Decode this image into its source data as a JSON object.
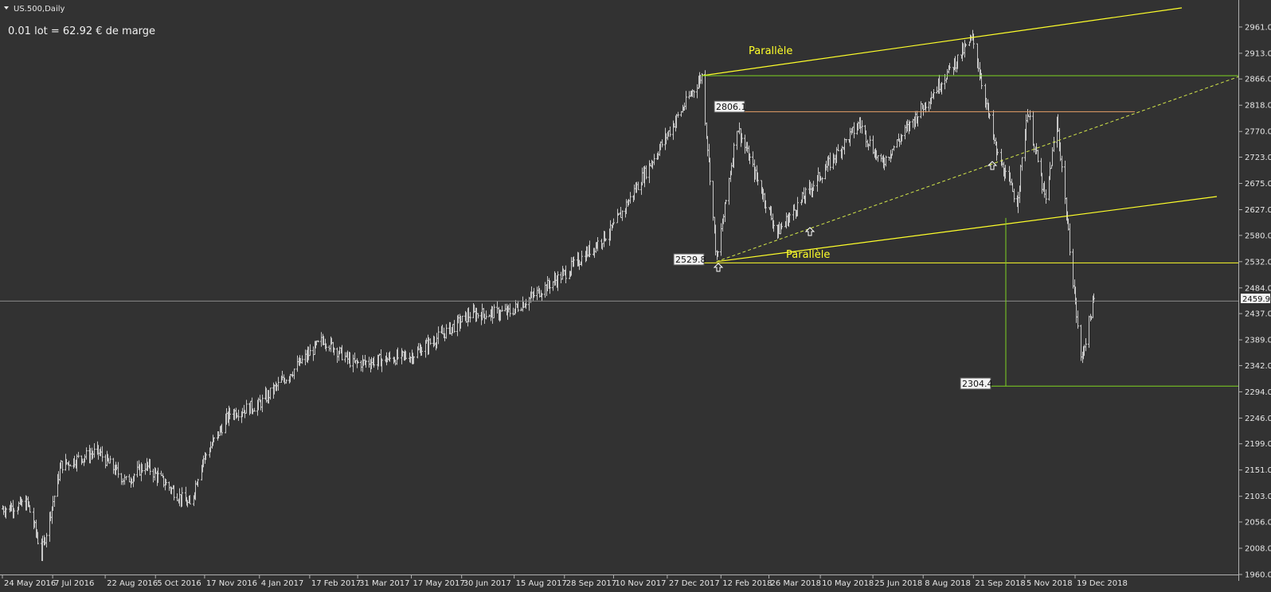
{
  "header": {
    "symbol": "US.500,Daily",
    "margin_note": "0.01 lot = 62.92 € de marge"
  },
  "colors": {
    "background": "#323232",
    "bars": "#c8c8c8",
    "axis_text": "#e6e6e6",
    "channel": "#ffff2a",
    "level_green": "#7ed321",
    "level_orange": "#e8a06a",
    "current_line": "#8a8a8a"
  },
  "chart_data": {
    "type": "ohlc",
    "symbol": "US.500",
    "timeframe": "Daily",
    "x_ticks": [
      "24 May 2016",
      "7 Jul 2016",
      "22 Aug 2016",
      "5 Oct 2016",
      "17 Nov 2016",
      "4 Jan 2017",
      "17 Feb 2017",
      "31 Mar 2017",
      "17 May 2017",
      "30 Jun 2017",
      "15 Aug 2017",
      "28 Sep 2017",
      "10 Nov 2017",
      "27 Dec 2017",
      "12 Feb 2018",
      "26 Mar 2018",
      "10 May 2018",
      "25 Jun 2018",
      "8 Aug 2018",
      "21 Sep 2018",
      "5 Nov 2018",
      "19 Dec 2018"
    ],
    "y_ticks": [
      "2961.0",
      "2913.0",
      "2866.0",
      "2818.0",
      "2770.0",
      "2723.0",
      "2675.0",
      "2627.0",
      "2580.0",
      "2532.0",
      "2484.0",
      "2437.0",
      "2389.0",
      "2342.0",
      "2294.0",
      "2246.0",
      "2199.0",
      "2151.0",
      "2103.0",
      "2056.0",
      "2008.0",
      "1960.0"
    ],
    "ylim": [
      1960,
      2990
    ],
    "price_path": [
      {
        "date": "24 May 2016",
        "close": 2080
      },
      {
        "date": "15 Jun 2016",
        "close": 2090
      },
      {
        "date": "27 Jun 2016",
        "close": 2000
      },
      {
        "date": "14 Jul 2016",
        "close": 2160
      },
      {
        "date": "15 Aug 2016",
        "close": 2185
      },
      {
        "date": "9 Sep 2016",
        "close": 2130
      },
      {
        "date": "26 Sep 2016",
        "close": 2160
      },
      {
        "date": "4 Nov 2016",
        "close": 2085
      },
      {
        "date": "14 Nov 2016",
        "close": 2165
      },
      {
        "date": "9 Dec 2016",
        "close": 2255
      },
      {
        "date": "3 Jan 2017",
        "close": 2270
      },
      {
        "date": "1 Mar 2017",
        "close": 2390
      },
      {
        "date": "27 Mar 2017",
        "close": 2345
      },
      {
        "date": "17 May 2017",
        "close": 2360
      },
      {
        "date": "7 Jul 2017",
        "close": 2435
      },
      {
        "date": "11 Aug 2017",
        "close": 2440
      },
      {
        "date": "28 Sep 2017",
        "close": 2510
      },
      {
        "date": "8 Nov 2017",
        "close": 2590
      },
      {
        "date": "26 Jan 2018",
        "close": 2872
      },
      {
        "date": "8 Feb 2018",
        "close": 2533
      },
      {
        "date": "26 Feb 2018",
        "close": 2780
      },
      {
        "date": "2 Apr 2018",
        "close": 2585
      },
      {
        "date": "13 Jun 2018",
        "close": 2785
      },
      {
        "date": "2 Jul 2018",
        "close": 2710
      },
      {
        "date": "20 Sep 2018",
        "close": 2940
      },
      {
        "date": "11 Oct 2018",
        "close": 2730
      },
      {
        "date": "29 Oct 2018",
        "close": 2640
      },
      {
        "date": "7 Nov 2018",
        "close": 2810
      },
      {
        "date": "23 Nov 2018",
        "close": 2640
      },
      {
        "date": "3 Dec 2018",
        "close": 2790
      },
      {
        "date": "24 Dec 2018",
        "close": 2351
      },
      {
        "date": "4 Jan 2019",
        "close": 2460
      }
    ],
    "current_price": "2459.9",
    "levels": [
      {
        "label": "2806.1",
        "value": 2806.1,
        "color": "#e8a06a"
      },
      {
        "label": "2529.8",
        "value": 2529.8,
        "color": "#ffff2a"
      },
      {
        "label": "2304.4",
        "value": 2304.4,
        "color": "#7ed321"
      },
      {
        "label": "",
        "value": 2872,
        "color": "#7ed321"
      }
    ],
    "annotations": [
      {
        "text": "Parallèle",
        "type": "channel-upper"
      },
      {
        "text": "Parallèle",
        "type": "channel-lower"
      }
    ],
    "grid": false,
    "legend": "none"
  }
}
